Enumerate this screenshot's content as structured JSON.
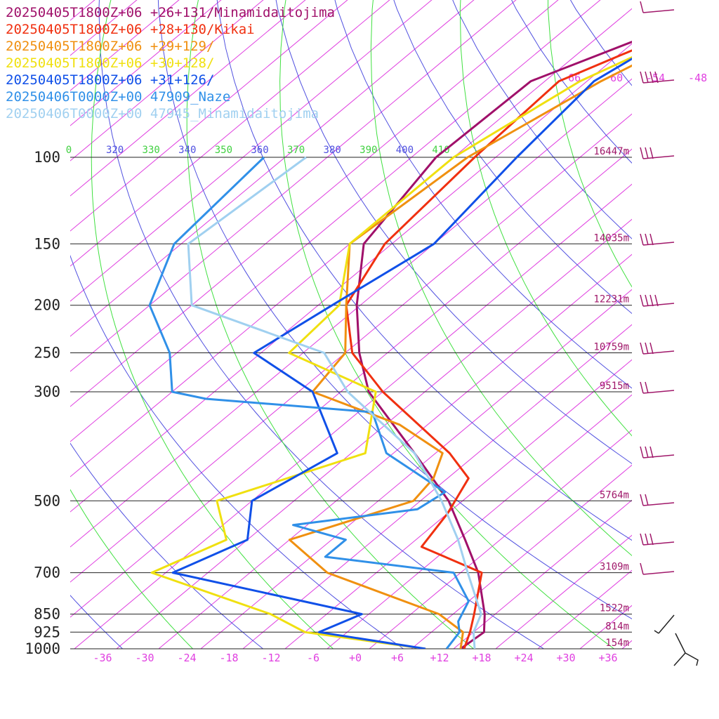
{
  "colors": {
    "isotherm": "#e040e0",
    "dry_adiabat": "#5050e0",
    "moist_adiabat": "#40e040",
    "isobar": "#222222",
    "wind_barb": "#a0186a",
    "theta_label_green": "#40d040",
    "theta_label_blue": "#5050e0",
    "height_label": "#a0186a"
  },
  "chart_data": {
    "type": "line",
    "title": "",
    "xlabel": "",
    "ylabel": "",
    "x_log_pressure_axis": true,
    "pressure_levels": [
      {
        "p": 100,
        "label": "100",
        "height": "16447m"
      },
      {
        "p": 150,
        "label": "150",
        "height": "14035m"
      },
      {
        "p": 200,
        "label": "200",
        "height": "12231m"
      },
      {
        "p": 250,
        "label": "250",
        "height": "10759m"
      },
      {
        "p": 300,
        "label": "300",
        "height": "9515m"
      },
      {
        "p": 500,
        "label": "500",
        "height": "5764m"
      },
      {
        "p": 700,
        "label": "700",
        "height": "3109m"
      },
      {
        "p": 850,
        "label": "850",
        "height": "1522m"
      },
      {
        "p": 925,
        "label": "925",
        "height": "814m"
      },
      {
        "p": 1000,
        "label": "1000",
        "height": "154m"
      }
    ],
    "temperature_ticks": [
      "-36",
      "-30",
      "-24",
      "-18",
      "-12",
      "-6",
      "+0",
      "+6",
      "+12",
      "+18",
      "+24",
      "+30",
      "+36"
    ],
    "temperature_tick_values": [
      -36,
      -30,
      -24,
      -18,
      -12,
      -6,
      0,
      6,
      12,
      18,
      24,
      30,
      36
    ],
    "upper_isotherm_labels": [
      {
        "t": -66,
        "label": "-66"
      },
      {
        "t": -60,
        "label": "-60"
      },
      {
        "t": -54,
        "label": "-54"
      },
      {
        "t": -48,
        "label": "-48"
      }
    ],
    "theta_labels": [
      {
        "theta": 310,
        "label": "0"
      },
      {
        "theta": 320,
        "label": "320"
      },
      {
        "theta": 330,
        "label": "330"
      },
      {
        "theta": 340,
        "label": "340"
      },
      {
        "theta": 350,
        "label": "350"
      },
      {
        "theta": 360,
        "label": "360"
      },
      {
        "theta": 370,
        "label": "370"
      },
      {
        "theta": 380,
        "label": "380"
      },
      {
        "theta": 390,
        "label": "390"
      },
      {
        "theta": 400,
        "label": "400"
      },
      {
        "theta": 410,
        "label": "410"
      }
    ],
    "series": [
      {
        "name": "20250405T1800Z+06 +26+131/Minamidaitojima",
        "color": "#a0106a",
        "points": [
          {
            "p": 1000,
            "t": 15
          },
          {
            "p": 925,
            "t": 15.5
          },
          {
            "p": 850,
            "t": 12.5
          },
          {
            "p": 700,
            "t": 4.5
          },
          {
            "p": 600,
            "t": -3
          },
          {
            "p": 500,
            "t": -12
          },
          {
            "p": 400,
            "t": -25
          },
          {
            "p": 300,
            "t": -42
          },
          {
            "p": 250,
            "t": -50
          },
          {
            "p": 200,
            "t": -58.5
          },
          {
            "p": 150,
            "t": -68
          },
          {
            "p": 100,
            "t": -72.5
          },
          {
            "p": 70,
            "t": -72
          },
          {
            "p": 50,
            "t": -58
          }
        ]
      },
      {
        "name": "20250405T1800Z+06 +28+130/Kikai",
        "color": "#f03010",
        "points": [
          {
            "p": 1000,
            "t": 15.5
          },
          {
            "p": 925,
            "t": 13.5
          },
          {
            "p": 850,
            "t": 11
          },
          {
            "p": 700,
            "t": 5
          },
          {
            "p": 620,
            "t": -8
          },
          {
            "p": 530,
            "t": -10
          },
          {
            "p": 450,
            "t": -13
          },
          {
            "p": 400,
            "t": -20
          },
          {
            "p": 300,
            "t": -40
          },
          {
            "p": 250,
            "t": -51
          },
          {
            "p": 200,
            "t": -60
          },
          {
            "p": 150,
            "t": -65
          },
          {
            "p": 100,
            "t": -67
          },
          {
            "p": 70,
            "t": -68
          },
          {
            "p": 50,
            "t": -56
          }
        ]
      },
      {
        "name": "20250405T1800Z+06 +29+129/",
        "color": "#f09010",
        "points": [
          {
            "p": 1000,
            "t": 15
          },
          {
            "p": 925,
            "t": 12.5
          },
          {
            "p": 850,
            "t": 6
          },
          {
            "p": 700,
            "t": -17
          },
          {
            "p": 600,
            "t": -28
          },
          {
            "p": 500,
            "t": -17
          },
          {
            "p": 450,
            "t": -18
          },
          {
            "p": 400,
            "t": -21
          },
          {
            "p": 350,
            "t": -32
          },
          {
            "p": 300,
            "t": -50
          },
          {
            "p": 250,
            "t": -52
          },
          {
            "p": 200,
            "t": -60
          },
          {
            "p": 150,
            "t": -70
          },
          {
            "p": 100,
            "t": -68
          },
          {
            "p": 70,
            "t": -62
          },
          {
            "p": 50,
            "t": -54
          }
        ]
      },
      {
        "name": "20250405T1800Z+06 +30+128/",
        "color": "#f0e010",
        "points": [
          {
            "p": 1000,
            "t": 10
          },
          {
            "p": 925,
            "t": -10
          },
          {
            "p": 850,
            "t": -18
          },
          {
            "p": 700,
            "t": -42
          },
          {
            "p": 600,
            "t": -37
          },
          {
            "p": 500,
            "t": -45
          },
          {
            "p": 400,
            "t": -32
          },
          {
            "p": 300,
            "t": -41
          },
          {
            "p": 250,
            "t": -60
          },
          {
            "p": 200,
            "t": -61
          },
          {
            "p": 150,
            "t": -70
          },
          {
            "p": 100,
            "t": -70
          },
          {
            "p": 70,
            "t": -65
          },
          {
            "p": 50,
            "t": -55
          }
        ]
      },
      {
        "name": "20250405T1800Z+06 +31+126/",
        "color": "#1050e8",
        "points": [
          {
            "p": 1000,
            "t": 10
          },
          {
            "p": 925,
            "t": -8
          },
          {
            "p": 850,
            "t": -5
          },
          {
            "p": 700,
            "t": -39
          },
          {
            "p": 600,
            "t": -34
          },
          {
            "p": 500,
            "t": -40
          },
          {
            "p": 400,
            "t": -36
          },
          {
            "p": 300,
            "t": -50
          },
          {
            "p": 250,
            "t": -65
          },
          {
            "p": 200,
            "t": -62
          },
          {
            "p": 150,
            "t": -58
          },
          {
            "p": 100,
            "t": -61
          },
          {
            "p": 70,
            "t": -63
          },
          {
            "p": 50,
            "t": -58
          }
        ]
      },
      {
        "name": "20250406T0000Z+00 47909_Naze",
        "color": "#3090e8",
        "points": [
          {
            "p": 1000,
            "t": 13
          },
          {
            "p": 925,
            "t": 12
          },
          {
            "p": 880,
            "t": 10
          },
          {
            "p": 800,
            "t": 8
          },
          {
            "p": 700,
            "t": 1
          },
          {
            "p": 650,
            "t": -20
          },
          {
            "p": 600,
            "t": -20
          },
          {
            "p": 560,
            "t": -30
          },
          {
            "p": 520,
            "t": -15
          },
          {
            "p": 480,
            "t": -14
          },
          {
            "p": 400,
            "t": -29
          },
          {
            "p": 330,
            "t": -38
          },
          {
            "p": 310,
            "t": -64
          },
          {
            "p": 300,
            "t": -70
          },
          {
            "p": 250,
            "t": -77
          },
          {
            "p": 200,
            "t": -88
          },
          {
            "p": 150,
            "t": -95
          },
          {
            "p": 100,
            "t": -97
          }
        ]
      },
      {
        "name": "20250406T0000Z+00 47945_Minamidaitojima",
        "color": "#a0d0f0",
        "points": [
          {
            "p": 1000,
            "t": 17
          },
          {
            "p": 925,
            "t": 14
          },
          {
            "p": 850,
            "t": 12
          },
          {
            "p": 700,
            "t": 3
          },
          {
            "p": 600,
            "t": -4
          },
          {
            "p": 500,
            "t": -13
          },
          {
            "p": 400,
            "t": -25
          },
          {
            "p": 300,
            "t": -45
          },
          {
            "p": 250,
            "t": -55
          },
          {
            "p": 200,
            "t": -82
          },
          {
            "p": 150,
            "t": -93
          },
          {
            "p": 100,
            "t": -91
          }
        ]
      }
    ]
  }
}
